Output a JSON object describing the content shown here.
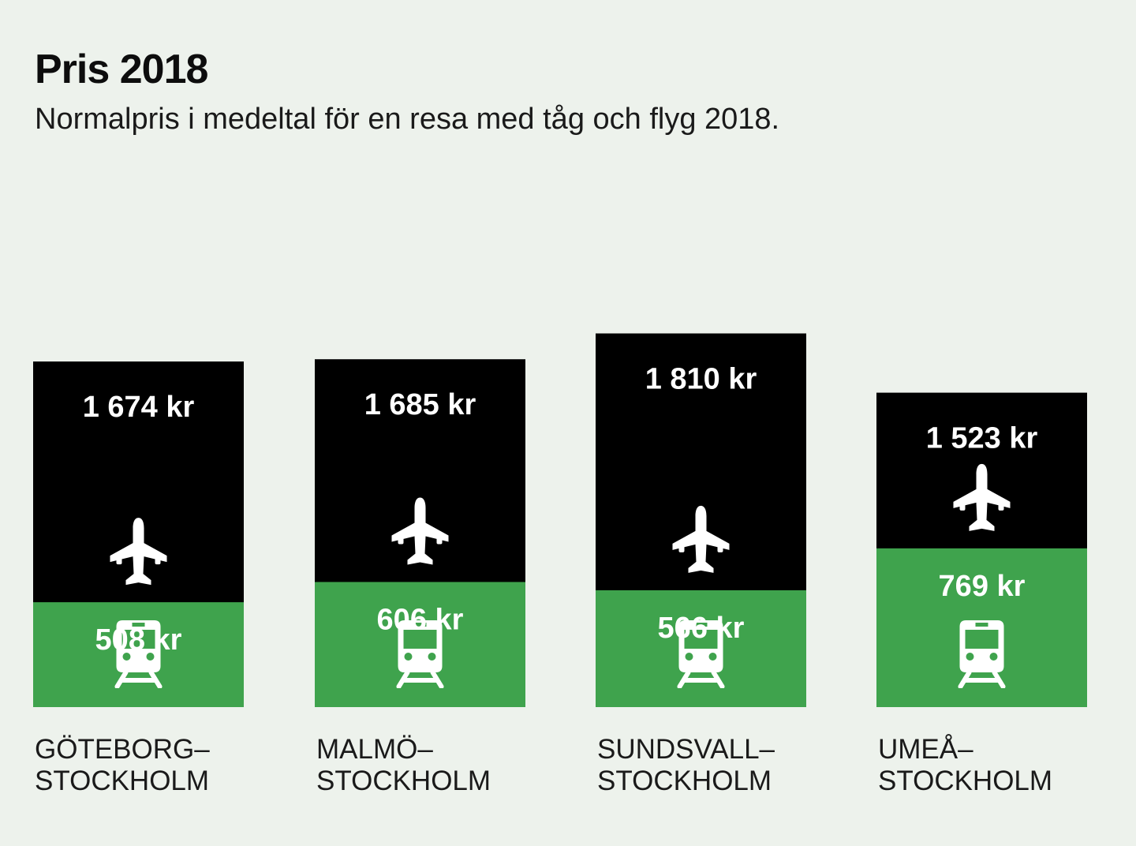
{
  "chart_data": {
    "type": "bar",
    "stacked": true,
    "title": "Pris 2018",
    "subtitle": "Normalpris i medeltal för en resa med tåg och flyg 2018.",
    "categories": [
      [
        "GÖTEBORG–",
        "STOCKHOLM"
      ],
      [
        "MALMÖ–",
        "STOCKHOLM"
      ],
      [
        "SUNDSVALL–",
        "STOCKHOLM"
      ],
      [
        "UMEÅ–",
        "STOCKHOLM"
      ]
    ],
    "series": [
      {
        "key": "train",
        "icon": "train-icon",
        "color": "#3fa34d",
        "values": [
          508,
          606,
          566,
          769
        ],
        "labels": [
          "508 kr",
          "606 kr",
          "566 kr",
          "769 kr"
        ]
      },
      {
        "key": "flight",
        "icon": "airplane-icon",
        "color": "#000000",
        "values": [
          1674,
          1685,
          1810,
          1523
        ],
        "labels": [
          "1 674 kr",
          "1 685 kr",
          "1 810 kr",
          "1 523 kr"
        ]
      }
    ]
  }
}
